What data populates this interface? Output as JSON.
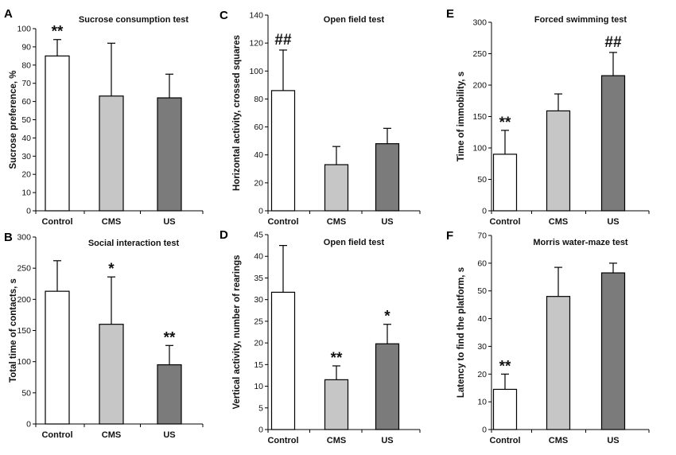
{
  "figure": {
    "colors": {
      "white": "#ffffff",
      "light_gray": "#c6c6c6",
      "dark_gray": "#7b7b7b"
    }
  },
  "chart_data": [
    {
      "panel": "A",
      "type": "bar",
      "title": "Sucrose consumption  test",
      "ylabel": "Sucrose preference, %",
      "categories": [
        "Control",
        "CMS",
        "US"
      ],
      "values": [
        85,
        63,
        62
      ],
      "errors": [
        9,
        29,
        13
      ],
      "significance": [
        "**",
        "",
        ""
      ],
      "ylim": [
        0,
        100
      ],
      "yticks": [
        0,
        10,
        20,
        30,
        40,
        50,
        60,
        70,
        80,
        90,
        100
      ]
    },
    {
      "panel": "B",
      "type": "bar",
      "title": "Social interaction  test",
      "ylabel": "Total time of contacts, s",
      "categories": [
        "Control",
        "CMS",
        "US"
      ],
      "values": [
        213,
        160,
        95
      ],
      "errors": [
        49,
        76,
        31
      ],
      "significance": [
        "",
        "*",
        "**"
      ],
      "ylim": [
        0,
        300
      ],
      "yticks": [
        0,
        50,
        100,
        150,
        200,
        250,
        300
      ]
    },
    {
      "panel": "C",
      "type": "bar",
      "title": "Open field test",
      "ylabel": "Horizontal activity, crossed squares",
      "categories": [
        "Control",
        "CMS",
        "US"
      ],
      "values": [
        86,
        33,
        48
      ],
      "errors": [
        29,
        13,
        11
      ],
      "significance": [
        "##",
        "",
        ""
      ],
      "ylim": [
        0,
        140
      ],
      "yticks": [
        0,
        20,
        40,
        60,
        80,
        100,
        120,
        140
      ]
    },
    {
      "panel": "D",
      "type": "bar",
      "title": "Open field test",
      "ylabel": "Vertical activity, number of rearings",
      "categories": [
        "Control",
        "CMS",
        "US"
      ],
      "values": [
        31.7,
        11.5,
        19.8
      ],
      "errors": [
        10.8,
        3.2,
        4.5
      ],
      "significance": [
        "",
        "**",
        "*"
      ],
      "ylim": [
        0,
        45
      ],
      "yticks": [
        0,
        5,
        10,
        15,
        20,
        25,
        30,
        35,
        40,
        45
      ]
    },
    {
      "panel": "E",
      "type": "bar",
      "title": "Forced swimming test",
      "ylabel": "Time of immobility, s",
      "categories": [
        "Control",
        "CMS",
        "US"
      ],
      "values": [
        90,
        159,
        215
      ],
      "errors": [
        38,
        27,
        37
      ],
      "significance": [
        "**",
        "",
        "##"
      ],
      "ylim": [
        0,
        300
      ],
      "yticks": [
        0,
        50,
        100,
        150,
        200,
        250,
        300
      ]
    },
    {
      "panel": "F",
      "type": "bar",
      "title": "Morris water-maze test",
      "ylabel": "Latency to find the platform, s",
      "categories": [
        "Control",
        "CMS",
        "US"
      ],
      "values": [
        14.5,
        48,
        56.5
      ],
      "errors": [
        5.5,
        10.5,
        3.5
      ],
      "significance": [
        "**",
        "",
        ""
      ],
      "ylim": [
        0,
        70
      ],
      "yticks": [
        0,
        10,
        20,
        30,
        40,
        50,
        60,
        70
      ]
    }
  ]
}
